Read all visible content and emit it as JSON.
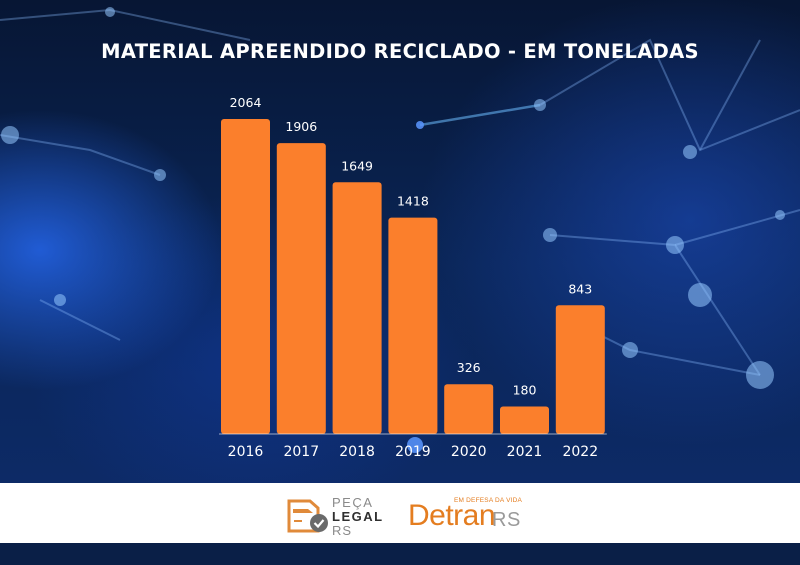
{
  "chart_data": {
    "type": "bar",
    "title": "MATERIAL APREENDIDO RECICLADO - EM TONELADAS",
    "categories": [
      "2016",
      "2017",
      "2018",
      "2019",
      "2020",
      "2021",
      "2022"
    ],
    "values": [
      2064,
      1906,
      1649,
      1418,
      326,
      180,
      843
    ],
    "value_labels": [
      "2064",
      "1906",
      "1649",
      "1418",
      "326",
      "180",
      "843"
    ],
    "xlabel": "",
    "ylabel": "",
    "ylim": [
      0,
      2064
    ],
    "grid": false,
    "legend": "none",
    "bar_color": "#fb7f2c"
  },
  "footer": {
    "peca_legal": {
      "line1": "PEÇA",
      "line2": "LEGAL",
      "line3": "RS"
    },
    "detran": {
      "tagline": "EM DEFESA DA VIDA",
      "word": "Detran",
      "suffix": "RS"
    }
  },
  "colors": {
    "background": "#0a2556",
    "bar": "#fb7f2c",
    "brand_orange": "#e47d20",
    "footer_bg": "#ffffff"
  }
}
